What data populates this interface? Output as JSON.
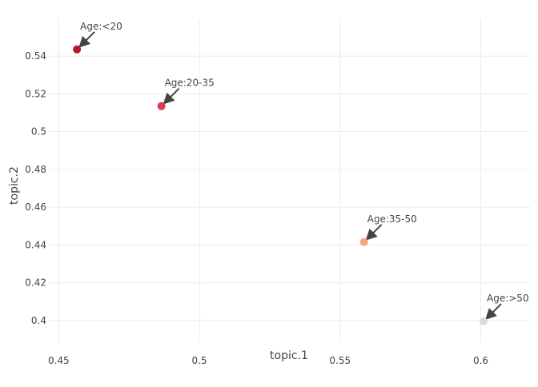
{
  "chart_data": {
    "type": "scatter",
    "xlabel": "topic.1",
    "ylabel": "topic.2",
    "xlim": [
      0.4465,
      0.6175
    ],
    "ylim": [
      0.3885,
      0.5595
    ],
    "x_ticks": [
      0.45,
      0.5,
      0.55,
      0.6
    ],
    "x_tick_labels": [
      "0.45",
      "0.5",
      "0.55",
      "0.6"
    ],
    "y_ticks": [
      0.4,
      0.42,
      0.44,
      0.46,
      0.48,
      0.5,
      0.52,
      0.54
    ],
    "y_tick_labels": [
      "0.4",
      "0.42",
      "0.44",
      "0.46",
      "0.48",
      "0.5",
      "0.52",
      "0.54"
    ],
    "grid": true,
    "points": [
      {
        "label": "Age:<20",
        "x": 0.4565,
        "y": 0.5435,
        "color": "#b2182b"
      },
      {
        "label": "Age:20-35",
        "x": 0.4865,
        "y": 0.5135,
        "color": "#d6404e"
      },
      {
        "label": "Age:35-50",
        "x": 0.5585,
        "y": 0.4415,
        "color": "#f4a582"
      },
      {
        "label": "Age:>50",
        "x": 0.601,
        "y": 0.3995,
        "color": "#d9d9d9"
      }
    ]
  }
}
